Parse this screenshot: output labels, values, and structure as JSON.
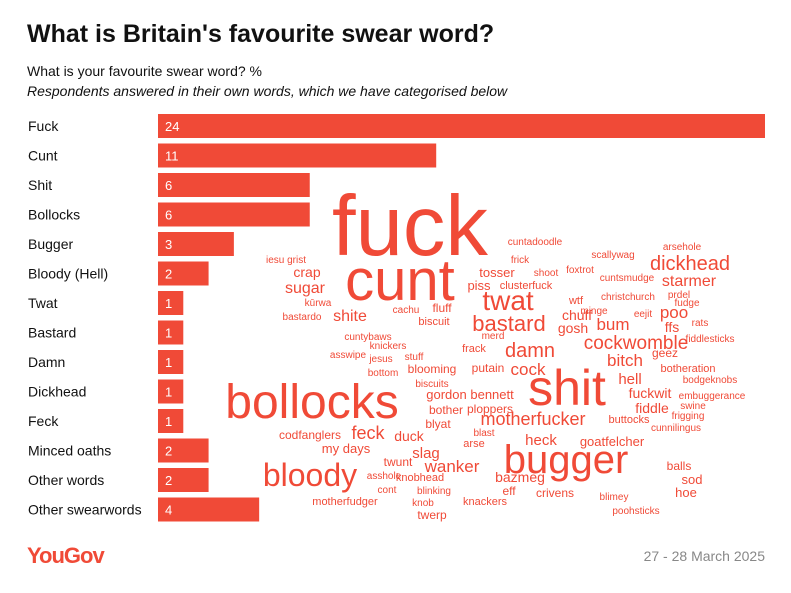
{
  "chart_data": {
    "type": "bar",
    "orientation": "horizontal",
    "title": "What is Britain's favourite swear word?",
    "subtitle": "What is your favourite swear word? %",
    "note": "Respondents answered in their own words, which we have categorised below",
    "categories": [
      "Fuck",
      "Cunt",
      "Shit",
      "Bollocks",
      "Bugger",
      "Bloody (Hell)",
      "Twat",
      "Bastard",
      "Damn",
      "Dickhead",
      "Feck",
      "Minced oaths",
      "Other words",
      "Other swearwords"
    ],
    "values": [
      24,
      11,
      6,
      6,
      3,
      2,
      1,
      1,
      1,
      1,
      1,
      2,
      2,
      4
    ],
    "color": "#f04a37",
    "xlim": [
      0,
      24
    ],
    "word_cloud": [
      "fuck",
      "cunt",
      "shit",
      "bollocks",
      "bugger",
      "bloody",
      "twat",
      "bastard",
      "damn",
      "cockwomble",
      "dickhead",
      "starmer",
      "motherfucker",
      "wanker",
      "feck",
      "bitch",
      "bum",
      "poo",
      "hell",
      "fuckwit",
      "fiddle",
      "heck",
      "goatfelcher",
      "cock",
      "slag",
      "duck",
      "tosser",
      "piss",
      "clusterfuck",
      "shoot",
      "foxtrot",
      "frick",
      "cuntadoodle",
      "scallywag",
      "arsehole",
      "cuntsmudge",
      "prdel",
      "fudge",
      "eejit",
      "christchurch",
      "wtf",
      "minge",
      "chuff",
      "gosh",
      "ffs",
      "rats",
      "fiddlesticks",
      "geez",
      "botheration",
      "bodgeknobs",
      "embuggerance",
      "swine",
      "frigging",
      "cunnilingus",
      "buttocks",
      "balls",
      "sod",
      "hoe",
      "blimey",
      "poohsticks",
      "crivens",
      "eff",
      "bazmeg",
      "knackers",
      "twerp",
      "knob",
      "blinking",
      "knobhead",
      "twunt",
      "asshole",
      "cont",
      "motherfudger",
      "my days",
      "codfanglers",
      "arse",
      "blast",
      "blyat",
      "bother",
      "ploppers",
      "biscuits",
      "putain",
      "blooming",
      "gordon bennett",
      "stuff",
      "jesus",
      "knickers",
      "asswipe",
      "bottom",
      "cuntybaws",
      "frack",
      "merd",
      "biscuit",
      "fluff",
      "cachu",
      "shite",
      "kūrwa",
      "bastardo",
      "crap",
      "sugar",
      "iesu grist"
    ],
    "source": "YouGov",
    "date": "27 - 28 March 2025"
  }
}
